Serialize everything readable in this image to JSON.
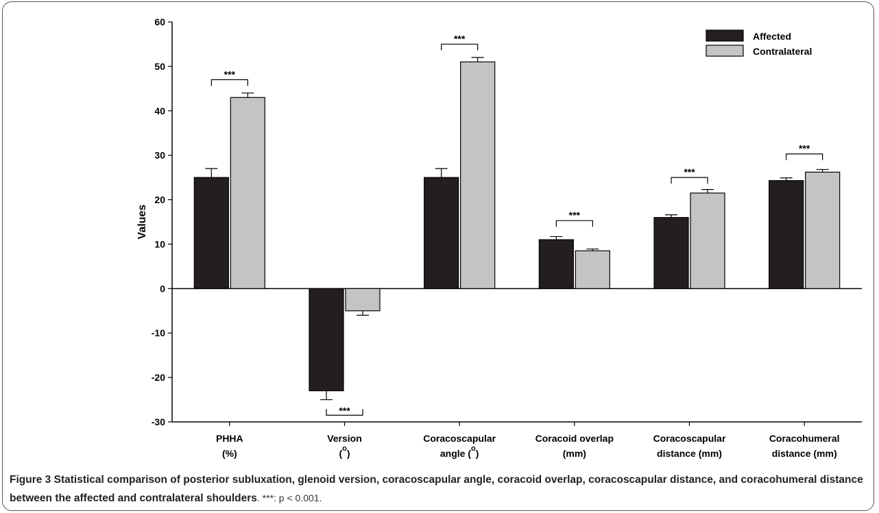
{
  "chart_data": {
    "type": "bar",
    "ylabel": "Values",
    "ylim": [
      -30,
      60
    ],
    "yticks": [
      -30,
      -20,
      -10,
      0,
      10,
      20,
      30,
      40,
      50,
      60
    ],
    "legend_position": "top-right",
    "categories": [
      {
        "line1": "PHHA",
        "line2": "(%)",
        "sup": ""
      },
      {
        "line1": "Version",
        "line2": "(",
        "sup": "o",
        "line2b": ")"
      },
      {
        "line1": "Coracoscapular",
        "line2": "angle (",
        "sup": "o",
        "line2b": ")"
      },
      {
        "line1": "Coracoid overlap",
        "line2": "(mm)",
        "sup": ""
      },
      {
        "line1": "Coracoscapular",
        "line2": "distance (mm)",
        "sup": ""
      },
      {
        "line1": "Coracohumeral",
        "line2": "distance (mm)",
        "sup": ""
      }
    ],
    "series": [
      {
        "name": "Affected",
        "color": "#231f20",
        "values": [
          25,
          -23,
          25,
          11,
          16,
          24.3
        ],
        "errors": [
          2,
          2,
          2,
          0.7,
          0.6,
          0.6
        ]
      },
      {
        "name": "Contralateral",
        "color": "#c4c4c4",
        "values": [
          43,
          -5,
          51,
          8.5,
          21.5,
          26.2
        ],
        "errors": [
          1,
          1,
          1,
          0.4,
          0.8,
          0.6
        ]
      }
    ],
    "significance": [
      {
        "label": "***",
        "y": 47,
        "below": false
      },
      {
        "label": "***",
        "y": -28.5,
        "below": true
      },
      {
        "label": "***",
        "y": 55,
        "below": false
      },
      {
        "label": "***",
        "y": 15.3,
        "below": false
      },
      {
        "label": "***",
        "y": 25,
        "below": false
      },
      {
        "label": "***",
        "y": 30.3,
        "below": false
      }
    ]
  },
  "caption": {
    "label": "Figure 3",
    "text": "Statistical comparison of posterior subluxation, glenoid version, coracoscapular angle, coracoid overlap, coracoscapular distance, and coracohumeral distance between the affected and contralateral shoulders",
    "note": ". ***: p < 0.001."
  }
}
